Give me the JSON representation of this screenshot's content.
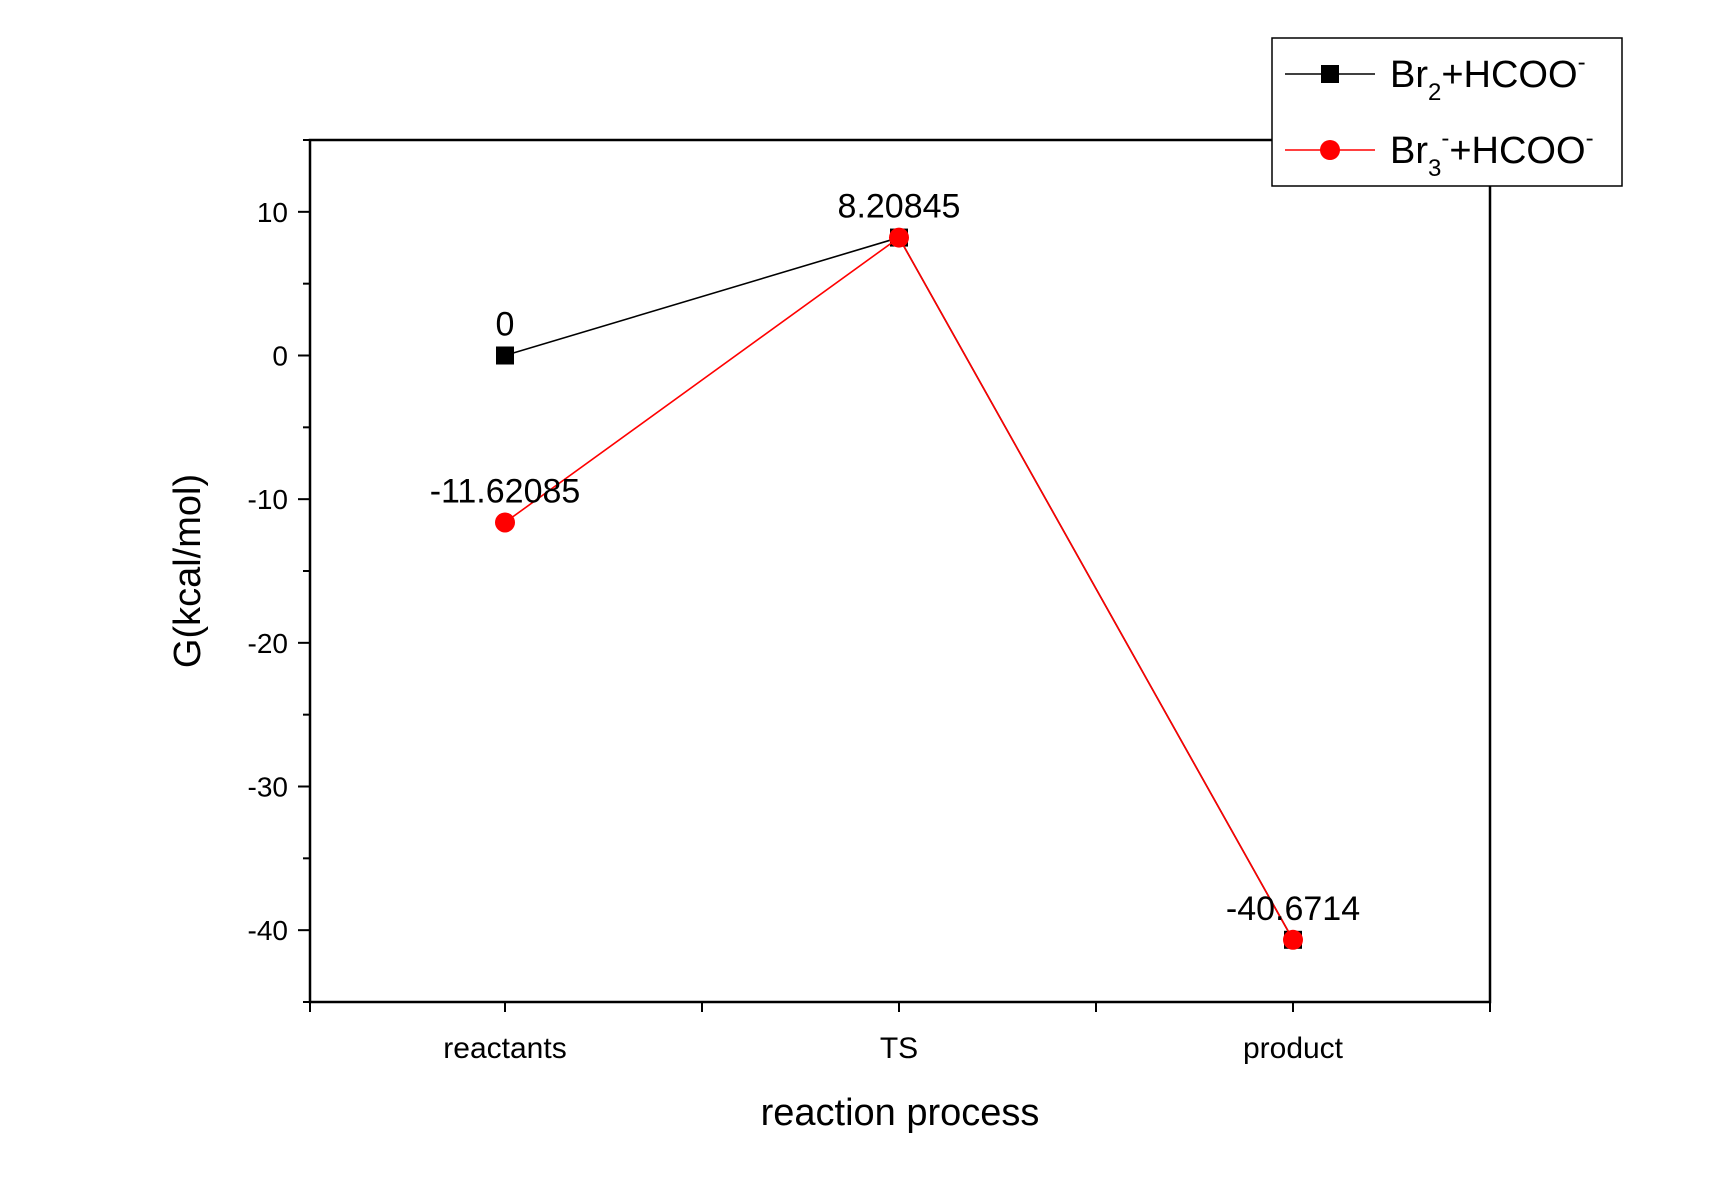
{
  "chart_data": {
    "type": "line",
    "title": "",
    "xlabel": "reaction process",
    "ylabel": "G(kcal/mol)",
    "categories": [
      "reactants",
      "TS",
      "product"
    ],
    "ylim": [
      -45,
      15
    ],
    "yticks": [
      10,
      0,
      -10,
      -20,
      -30,
      -40
    ],
    "grid": false,
    "legend_position": "top-right",
    "series": [
      {
        "name_base": "Br",
        "name_sub": "2",
        "name_sup": "",
        "name_rest": "+HCOO",
        "name_rest_sup": "-",
        "color": "#000000",
        "marker": "square",
        "values": [
          0,
          8.20845,
          -40.6714
        ]
      },
      {
        "name_base": "Br",
        "name_sub": "3",
        "name_sup": "-",
        "name_rest": "+HCOO",
        "name_rest_sup": "-",
        "color": "#ff0000",
        "marker": "circle",
        "values": [
          -11.62085,
          8.20845,
          -40.6714
        ]
      }
    ],
    "data_labels": [
      {
        "text": "0",
        "category": "reactants",
        "value": 0,
        "placement": "above"
      },
      {
        "text": "-11.62085",
        "category": "reactants",
        "value": -11.62085,
        "placement": "above"
      },
      {
        "text": "8.20845",
        "category": "TS",
        "value": 8.20845,
        "placement": "above"
      },
      {
        "text": "-40.6714",
        "category": "product",
        "value": -40.6714,
        "placement": "above"
      }
    ]
  }
}
